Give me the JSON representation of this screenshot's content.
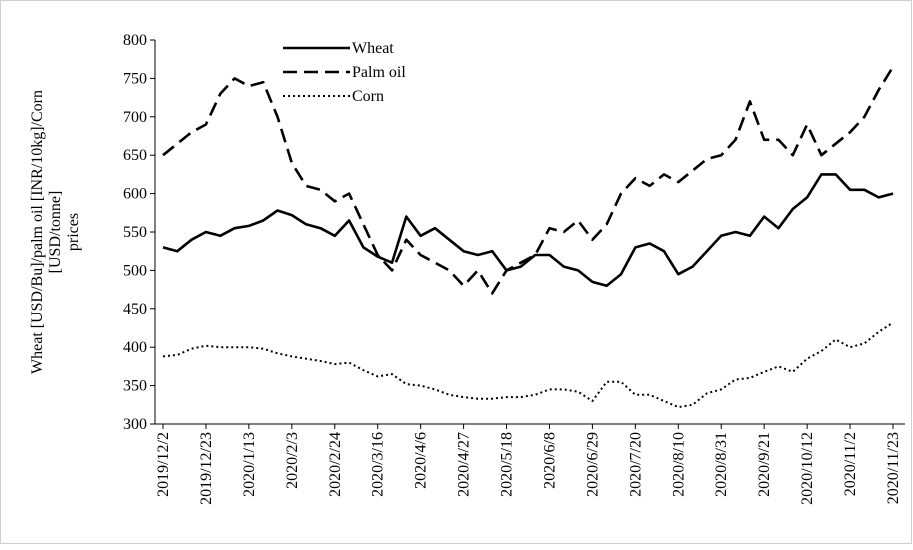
{
  "chart_data": {
    "type": "line",
    "ylabel": [
      "Wheat [USD/Bu]/palm oil [INR/10kg]/Corn",
      "[USD/tonne]",
      "prices"
    ],
    "x": [
      "2019/12/2",
      "2019/12/9",
      "2019/12/16",
      "2019/12/23",
      "2019/12/30",
      "2020/1/6",
      "2020/1/13",
      "2020/1/20",
      "2020/1/27",
      "2020/2/3",
      "2020/2/10",
      "2020/2/17",
      "2020/2/24",
      "2020/3/2",
      "2020/3/9",
      "2020/3/16",
      "2020/3/23",
      "2020/3/30",
      "2020/4/6",
      "2020/4/13",
      "2020/4/20",
      "2020/4/27",
      "2020/5/4",
      "2020/5/11",
      "2020/5/18",
      "2020/5/25",
      "2020/6/1",
      "2020/6/8",
      "2020/6/15",
      "2020/6/22",
      "2020/6/29",
      "2020/7/6",
      "2020/7/13",
      "2020/7/20",
      "2020/7/27",
      "2020/8/3",
      "2020/8/10",
      "2020/8/17",
      "2020/8/24",
      "2020/8/31",
      "2020/9/7",
      "2020/9/14",
      "2020/9/21",
      "2020/9/28",
      "2020/10/5",
      "2020/10/12",
      "2020/10/19",
      "2020/10/26",
      "2020/11/2",
      "2020/11/9",
      "2020/11/16",
      "2020/11/23"
    ],
    "xticks": [
      "2019/12/2",
      "2019/12/23",
      "2020/1/13",
      "2020/2/3",
      "2020/2/24",
      "2020/3/16",
      "2020/4/6",
      "2020/4/27",
      "2020/5/18",
      "2020/6/8",
      "2020/6/29",
      "2020/7/20",
      "2020/8/10",
      "2020/8/31",
      "2020/9/21",
      "2020/10/12",
      "2020/11/2",
      "2020/11/23"
    ],
    "ylim": [
      300,
      800
    ],
    "yticks": [
      300,
      350,
      400,
      450,
      500,
      550,
      600,
      650,
      700,
      750,
      800
    ],
    "series": [
      {
        "name": "Wheat",
        "color": "#000000",
        "style": "solid",
        "values": [
          530,
          525,
          540,
          550,
          545,
          555,
          558,
          565,
          578,
          572,
          560,
          555,
          545,
          565,
          530,
          518,
          510,
          570,
          545,
          555,
          540,
          525,
          520,
          525,
          500,
          505,
          520,
          520,
          505,
          500,
          485,
          480,
          495,
          530,
          535,
          525,
          495,
          505,
          525,
          545,
          550,
          545,
          570,
          555,
          580,
          595,
          625,
          625,
          605,
          605,
          595,
          600
        ]
      },
      {
        "name": "Palm oil",
        "color": "#000000",
        "style": "dashed",
        "values": [
          650,
          665,
          680,
          690,
          730,
          750,
          740,
          745,
          700,
          640,
          610,
          605,
          590,
          600,
          560,
          520,
          500,
          540,
          520,
          510,
          500,
          480,
          500,
          470,
          500,
          510,
          520,
          555,
          550,
          565,
          540,
          560,
          600,
          620,
          610,
          625,
          615,
          630,
          645,
          650,
          670,
          720,
          670,
          670,
          650,
          690,
          650,
          665,
          680,
          700,
          735,
          765
        ]
      },
      {
        "name": "Corn",
        "color": "#000000",
        "style": "dotted",
        "values": [
          388,
          390,
          398,
          402,
          400,
          400,
          400,
          398,
          392,
          388,
          385,
          382,
          378,
          380,
          370,
          362,
          365,
          352,
          350,
          345,
          338,
          335,
          333,
          333,
          335,
          335,
          338,
          345,
          345,
          342,
          330,
          355,
          355,
          338,
          338,
          330,
          322,
          325,
          340,
          345,
          358,
          360,
          368,
          375,
          368,
          385,
          395,
          410,
          400,
          405,
          420,
          432
        ]
      }
    ]
  }
}
